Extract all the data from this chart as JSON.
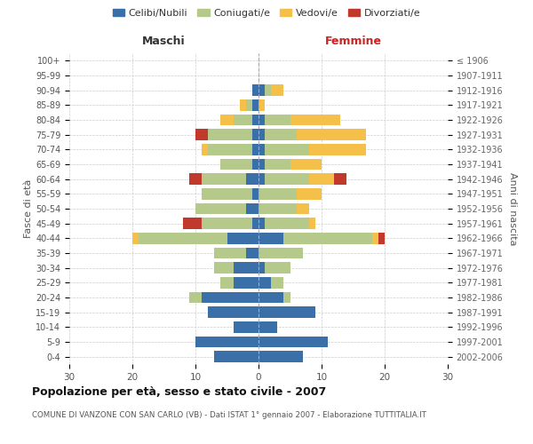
{
  "age_groups": [
    "100+",
    "95-99",
    "90-94",
    "85-89",
    "80-84",
    "75-79",
    "70-74",
    "65-69",
    "60-64",
    "55-59",
    "50-54",
    "45-49",
    "40-44",
    "35-39",
    "30-34",
    "25-29",
    "20-24",
    "15-19",
    "10-14",
    "5-9",
    "0-4"
  ],
  "birth_years": [
    "≤ 1906",
    "1907-1911",
    "1912-1916",
    "1917-1921",
    "1922-1926",
    "1927-1931",
    "1932-1936",
    "1937-1941",
    "1942-1946",
    "1947-1951",
    "1952-1956",
    "1957-1961",
    "1962-1966",
    "1967-1971",
    "1972-1976",
    "1977-1981",
    "1982-1986",
    "1987-1991",
    "1992-1996",
    "1997-2001",
    "2002-2006"
  ],
  "male": {
    "celibi": [
      0,
      0,
      1,
      1,
      1,
      1,
      1,
      1,
      2,
      1,
      2,
      1,
      5,
      2,
      4,
      4,
      9,
      8,
      4,
      10,
      7
    ],
    "coniugati": [
      0,
      0,
      0,
      1,
      3,
      7,
      7,
      5,
      7,
      8,
      8,
      8,
      14,
      5,
      3,
      2,
      2,
      0,
      0,
      0,
      0
    ],
    "vedovi": [
      0,
      0,
      0,
      1,
      2,
      0,
      1,
      0,
      0,
      0,
      0,
      0,
      1,
      0,
      0,
      0,
      0,
      0,
      0,
      0,
      0
    ],
    "divorziati": [
      0,
      0,
      0,
      0,
      0,
      2,
      0,
      0,
      2,
      0,
      0,
      3,
      0,
      0,
      0,
      0,
      0,
      0,
      0,
      0,
      0
    ]
  },
  "female": {
    "nubili": [
      0,
      0,
      1,
      0,
      1,
      1,
      1,
      1,
      1,
      0,
      0,
      1,
      4,
      0,
      1,
      2,
      4,
      9,
      3,
      11,
      7
    ],
    "coniugate": [
      0,
      0,
      1,
      0,
      4,
      5,
      7,
      4,
      7,
      6,
      6,
      7,
      14,
      7,
      4,
      2,
      1,
      0,
      0,
      0,
      0
    ],
    "vedove": [
      0,
      0,
      2,
      1,
      8,
      11,
      9,
      5,
      4,
      4,
      2,
      1,
      1,
      0,
      0,
      0,
      0,
      0,
      0,
      0,
      0
    ],
    "divorziate": [
      0,
      0,
      0,
      0,
      0,
      0,
      0,
      0,
      2,
      0,
      0,
      0,
      1,
      0,
      0,
      0,
      0,
      0,
      0,
      0,
      0
    ]
  },
  "colors": {
    "celibi": "#3a6fa8",
    "coniugati": "#b5c98a",
    "vedovi": "#f5c04a",
    "divorziati": "#c0392b"
  },
  "xlim": 30,
  "title": "Popolazione per età, sesso e stato civile - 2007",
  "subtitle": "COMUNE DI VANZONE CON SAN CARLO (VB) - Dati ISTAT 1° gennaio 2007 - Elaborazione TUTTITALIA.IT",
  "xlabel_left": "Maschi",
  "xlabel_right": "Femmine",
  "ylabel_left": "Fasce di età",
  "ylabel_right": "Anni di nascita",
  "legend_labels": [
    "Celibi/Nubili",
    "Coniugati/e",
    "Vedovi/e",
    "Divorziati/e"
  ],
  "background_color": "#ffffff",
  "grid_color": "#cccccc"
}
